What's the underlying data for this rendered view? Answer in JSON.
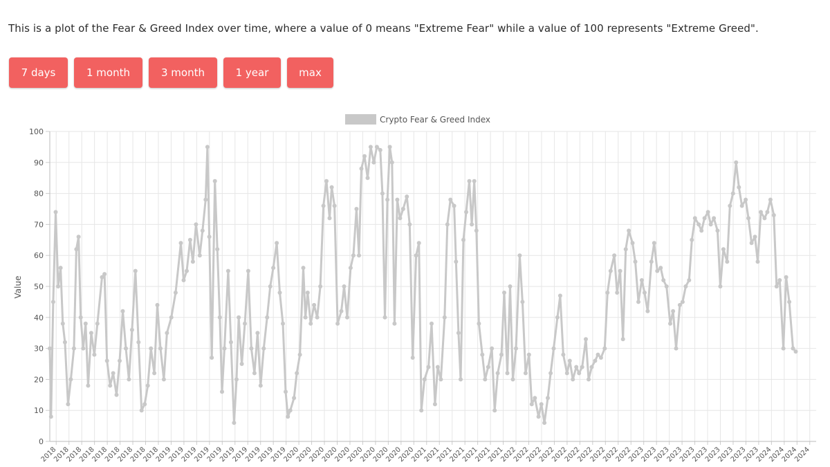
{
  "description": "This is a plot of the Fear & Greed Index over time, where a value of 0 means \"Extreme Fear\" while a value of 100 represents \"Extreme Greed\".",
  "range_buttons": [
    "7 days",
    "1 month",
    "3 month",
    "1 year",
    "max"
  ],
  "colors": {
    "button_bg": "#f26160",
    "button_text": "#ffffff",
    "series": "#c8c8c8",
    "grid": "#e6e6e6"
  },
  "chart_data": {
    "type": "line",
    "legend": {
      "label": "Crypto Fear & Greed Index",
      "position": "top-center"
    },
    "ylabel": "Value",
    "xlabel": "",
    "ylim": [
      0,
      100
    ],
    "yticks": [
      0,
      10,
      20,
      30,
      40,
      50,
      60,
      70,
      80,
      90,
      100
    ],
    "grid": true,
    "xlim": [
      "2018-02-01",
      "2024-11-15"
    ],
    "xtick_labels": [
      "2018",
      "2018",
      "2018",
      "2018",
      "2018",
      "2018",
      "2018",
      "2018",
      "2018",
      "2019",
      "2019",
      "2019",
      "2019",
      "2019",
      "2019",
      "2019",
      "2019",
      "2019",
      "2019",
      "2020",
      "2020",
      "2020",
      "2020",
      "2020",
      "2020",
      "2020",
      "2020",
      "2020",
      "2020",
      "2021",
      "2021",
      "2021",
      "2021",
      "2021",
      "2021",
      "2021",
      "2022",
      "2022",
      "2022",
      "2022",
      "2022",
      "2022",
      "2022",
      "2022",
      "2022",
      "2022",
      "2023",
      "2023",
      "2023",
      "2023",
      "2023",
      "2023",
      "2023",
      "2023",
      "2023",
      "2023",
      "2024",
      "2024",
      "2024",
      "2024"
    ],
    "series": [
      {
        "name": "Crypto Fear & Greed Index",
        "points": [
          [
            "2018-02-01",
            30
          ],
          [
            "2018-02-05",
            8
          ],
          [
            "2018-02-12",
            45
          ],
          [
            "2018-02-20",
            74
          ],
          [
            "2018-02-28",
            50
          ],
          [
            "2018-03-08",
            56
          ],
          [
            "2018-03-15",
            38
          ],
          [
            "2018-03-22",
            32
          ],
          [
            "2018-04-01",
            12
          ],
          [
            "2018-04-10",
            20
          ],
          [
            "2018-04-20",
            30
          ],
          [
            "2018-04-28",
            62
          ],
          [
            "2018-05-05",
            66
          ],
          [
            "2018-05-12",
            40
          ],
          [
            "2018-05-20",
            30
          ],
          [
            "2018-05-28",
            38
          ],
          [
            "2018-06-05",
            18
          ],
          [
            "2018-06-15",
            35
          ],
          [
            "2018-06-25",
            28
          ],
          [
            "2018-07-05",
            38
          ],
          [
            "2018-07-20",
            53
          ],
          [
            "2018-07-28",
            54
          ],
          [
            "2018-08-05",
            26
          ],
          [
            "2018-08-15",
            18
          ],
          [
            "2018-08-25",
            22
          ],
          [
            "2018-09-05",
            15
          ],
          [
            "2018-09-15",
            26
          ],
          [
            "2018-09-25",
            42
          ],
          [
            "2018-10-05",
            30
          ],
          [
            "2018-10-15",
            20
          ],
          [
            "2018-10-25",
            36
          ],
          [
            "2018-11-05",
            55
          ],
          [
            "2018-11-15",
            32
          ],
          [
            "2018-11-25",
            10
          ],
          [
            "2018-12-05",
            12
          ],
          [
            "2018-12-15",
            18
          ],
          [
            "2018-12-25",
            30
          ],
          [
            "2019-01-05",
            22
          ],
          [
            "2019-01-15",
            44
          ],
          [
            "2019-01-25",
            30
          ],
          [
            "2019-02-05",
            20
          ],
          [
            "2019-02-15",
            35
          ],
          [
            "2019-03-01",
            40
          ],
          [
            "2019-03-15",
            48
          ],
          [
            "2019-04-01",
            64
          ],
          [
            "2019-04-10",
            52
          ],
          [
            "2019-04-20",
            55
          ],
          [
            "2019-05-01",
            65
          ],
          [
            "2019-05-10",
            58
          ],
          [
            "2019-05-20",
            70
          ],
          [
            "2019-06-01",
            60
          ],
          [
            "2019-06-10",
            68
          ],
          [
            "2019-06-20",
            78
          ],
          [
            "2019-06-26",
            95
          ],
          [
            "2019-07-02",
            66
          ],
          [
            "2019-07-10",
            27
          ],
          [
            "2019-07-20",
            84
          ],
          [
            "2019-07-28",
            62
          ],
          [
            "2019-08-05",
            40
          ],
          [
            "2019-08-12",
            16
          ],
          [
            "2019-08-20",
            30
          ],
          [
            "2019-09-01",
            55
          ],
          [
            "2019-09-10",
            32
          ],
          [
            "2019-09-20",
            6
          ],
          [
            "2019-09-28",
            20
          ],
          [
            "2019-10-05",
            40
          ],
          [
            "2019-10-15",
            25
          ],
          [
            "2019-10-25",
            38
          ],
          [
            "2019-11-05",
            55
          ],
          [
            "2019-11-15",
            30
          ],
          [
            "2019-11-25",
            22
          ],
          [
            "2019-12-05",
            35
          ],
          [
            "2019-12-15",
            18
          ],
          [
            "2019-12-25",
            30
          ],
          [
            "2020-01-05",
            40
          ],
          [
            "2020-01-15",
            50
          ],
          [
            "2020-01-25",
            56
          ],
          [
            "2020-02-05",
            64
          ],
          [
            "2020-02-15",
            48
          ],
          [
            "2020-02-25",
            38
          ],
          [
            "2020-03-05",
            16
          ],
          [
            "2020-03-12",
            8
          ],
          [
            "2020-03-20",
            10
          ],
          [
            "2020-04-01",
            14
          ],
          [
            "2020-04-10",
            22
          ],
          [
            "2020-04-20",
            28
          ],
          [
            "2020-05-01",
            56
          ],
          [
            "2020-05-08",
            40
          ],
          [
            "2020-05-15",
            48
          ],
          [
            "2020-05-25",
            38
          ],
          [
            "2020-06-05",
            44
          ],
          [
            "2020-06-15",
            40
          ],
          [
            "2020-06-25",
            50
          ],
          [
            "2020-07-05",
            76
          ],
          [
            "2020-07-15",
            84
          ],
          [
            "2020-07-25",
            72
          ],
          [
            "2020-08-01",
            82
          ],
          [
            "2020-08-10",
            76
          ],
          [
            "2020-08-20",
            38
          ],
          [
            "2020-09-01",
            42
          ],
          [
            "2020-09-10",
            50
          ],
          [
            "2020-09-20",
            40
          ],
          [
            "2020-10-01",
            56
          ],
          [
            "2020-10-10",
            60
          ],
          [
            "2020-10-20",
            75
          ],
          [
            "2020-10-28",
            60
          ],
          [
            "2020-11-05",
            88
          ],
          [
            "2020-11-15",
            92
          ],
          [
            "2020-11-25",
            85
          ],
          [
            "2020-12-05",
            95
          ],
          [
            "2020-12-15",
            90
          ],
          [
            "2020-12-25",
            95
          ],
          [
            "2021-01-05",
            94
          ],
          [
            "2021-01-12",
            80
          ],
          [
            "2021-01-20",
            40
          ],
          [
            "2021-01-28",
            78
          ],
          [
            "2021-02-05",
            95
          ],
          [
            "2021-02-12",
            90
          ],
          [
            "2021-02-20",
            38
          ],
          [
            "2021-03-01",
            78
          ],
          [
            "2021-03-10",
            72
          ],
          [
            "2021-03-20",
            75
          ],
          [
            "2021-04-01",
            79
          ],
          [
            "2021-04-10",
            70
          ],
          [
            "2021-04-20",
            27
          ],
          [
            "2021-05-01",
            60
          ],
          [
            "2021-05-10",
            64
          ],
          [
            "2021-05-18",
            10
          ],
          [
            "2021-05-28",
            20
          ],
          [
            "2021-06-10",
            24
          ],
          [
            "2021-06-20",
            38
          ],
          [
            "2021-07-01",
            12
          ],
          [
            "2021-07-10",
            24
          ],
          [
            "2021-07-20",
            20
          ],
          [
            "2021-08-01",
            40
          ],
          [
            "2021-08-10",
            70
          ],
          [
            "2021-08-20",
            78
          ],
          [
            "2021-09-01",
            76
          ],
          [
            "2021-09-07",
            58
          ],
          [
            "2021-09-15",
            35
          ],
          [
            "2021-09-22",
            20
          ],
          [
            "2021-10-01",
            65
          ],
          [
            "2021-10-10",
            74
          ],
          [
            "2021-10-20",
            84
          ],
          [
            "2021-10-28",
            70
          ],
          [
            "2021-11-05",
            84
          ],
          [
            "2021-11-12",
            68
          ],
          [
            "2021-11-20",
            38
          ],
          [
            "2021-12-01",
            28
          ],
          [
            "2021-12-10",
            20
          ],
          [
            "2021-12-20",
            24
          ],
          [
            "2022-01-01",
            30
          ],
          [
            "2022-01-10",
            10
          ],
          [
            "2022-01-20",
            22
          ],
          [
            "2022-02-01",
            28
          ],
          [
            "2022-02-10",
            48
          ],
          [
            "2022-02-20",
            22
          ],
          [
            "2022-03-01",
            50
          ],
          [
            "2022-03-10",
            20
          ],
          [
            "2022-03-20",
            30
          ],
          [
            "2022-04-01",
            60
          ],
          [
            "2022-04-10",
            45
          ],
          [
            "2022-04-20",
            22
          ],
          [
            "2022-05-01",
            28
          ],
          [
            "2022-05-10",
            12
          ],
          [
            "2022-05-20",
            14
          ],
          [
            "2022-06-01",
            8
          ],
          [
            "2022-06-10",
            12
          ],
          [
            "2022-06-20",
            6
          ],
          [
            "2022-07-01",
            14
          ],
          [
            "2022-07-10",
            22
          ],
          [
            "2022-07-20",
            30
          ],
          [
            "2022-08-01",
            40
          ],
          [
            "2022-08-10",
            47
          ],
          [
            "2022-08-20",
            28
          ],
          [
            "2022-09-01",
            22
          ],
          [
            "2022-09-10",
            26
          ],
          [
            "2022-09-20",
            20
          ],
          [
            "2022-10-01",
            24
          ],
          [
            "2022-10-10",
            22
          ],
          [
            "2022-10-20",
            24
          ],
          [
            "2022-11-01",
            33
          ],
          [
            "2022-11-10",
            20
          ],
          [
            "2022-11-20",
            24
          ],
          [
            "2022-12-01",
            26
          ],
          [
            "2022-12-10",
            28
          ],
          [
            "2022-12-20",
            27
          ],
          [
            "2023-01-01",
            30
          ],
          [
            "2023-01-10",
            48
          ],
          [
            "2023-01-20",
            55
          ],
          [
            "2023-02-01",
            60
          ],
          [
            "2023-02-10",
            48
          ],
          [
            "2023-02-20",
            55
          ],
          [
            "2023-03-01",
            33
          ],
          [
            "2023-03-10",
            62
          ],
          [
            "2023-03-20",
            68
          ],
          [
            "2023-04-01",
            64
          ],
          [
            "2023-04-10",
            58
          ],
          [
            "2023-04-20",
            45
          ],
          [
            "2023-05-01",
            52
          ],
          [
            "2023-05-10",
            48
          ],
          [
            "2023-05-20",
            42
          ],
          [
            "2023-06-01",
            58
          ],
          [
            "2023-06-10",
            64
          ],
          [
            "2023-06-20",
            55
          ],
          [
            "2023-07-01",
            56
          ],
          [
            "2023-07-10",
            52
          ],
          [
            "2023-07-20",
            50
          ],
          [
            "2023-08-01",
            38
          ],
          [
            "2023-08-10",
            42
          ],
          [
            "2023-08-20",
            30
          ],
          [
            "2023-09-01",
            44
          ],
          [
            "2023-09-10",
            45
          ],
          [
            "2023-09-20",
            50
          ],
          [
            "2023-10-01",
            52
          ],
          [
            "2023-10-10",
            65
          ],
          [
            "2023-10-20",
            72
          ],
          [
            "2023-11-01",
            70
          ],
          [
            "2023-11-10",
            68
          ],
          [
            "2023-11-20",
            72
          ],
          [
            "2023-12-01",
            74
          ],
          [
            "2023-12-10",
            70
          ],
          [
            "2023-12-20",
            72
          ],
          [
            "2024-01-01",
            68
          ],
          [
            "2024-01-10",
            50
          ],
          [
            "2024-01-20",
            62
          ],
          [
            "2024-02-01",
            58
          ],
          [
            "2024-02-10",
            76
          ],
          [
            "2024-02-20",
            80
          ],
          [
            "2024-03-01",
            90
          ],
          [
            "2024-03-10",
            82
          ],
          [
            "2024-03-20",
            76
          ],
          [
            "2024-04-01",
            78
          ],
          [
            "2024-04-10",
            72
          ],
          [
            "2024-04-20",
            64
          ],
          [
            "2024-05-01",
            66
          ],
          [
            "2024-05-10",
            58
          ],
          [
            "2024-05-20",
            74
          ],
          [
            "2024-06-01",
            72
          ],
          [
            "2024-06-10",
            74
          ],
          [
            "2024-06-20",
            78
          ],
          [
            "2024-07-01",
            73
          ],
          [
            "2024-07-10",
            50
          ],
          [
            "2024-07-20",
            52
          ],
          [
            "2024-08-01",
            30
          ],
          [
            "2024-08-10",
            53
          ],
          [
            "2024-08-20",
            45
          ],
          [
            "2024-09-01",
            30
          ],
          [
            "2024-09-10",
            29
          ]
        ]
      }
    ]
  }
}
